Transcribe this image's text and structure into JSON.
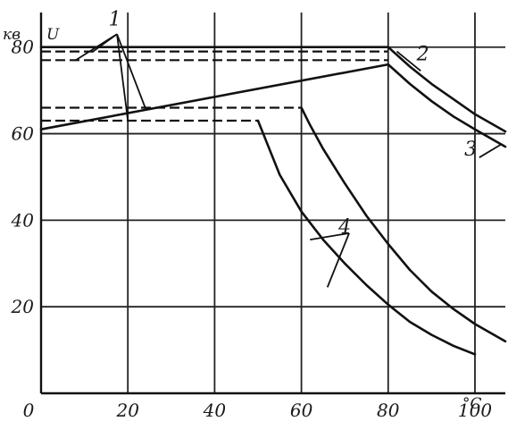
{
  "chart_data": {
    "type": "line",
    "title": "",
    "xlabel": "",
    "ylabel": "",
    "x_unit": "°C",
    "y_unit": "кв",
    "y_symbol": "U",
    "xlim": [
      0,
      107
    ],
    "ylim": [
      0,
      88
    ],
    "x_ticks": [
      0,
      20,
      40,
      60,
      80,
      100
    ],
    "x_tick_labels": [
      "0",
      "20",
      "40",
      "60",
      "80",
      "100"
    ],
    "y_ticks": [
      20,
      40,
      60,
      80
    ],
    "y_tick_labels": [
      "20",
      "40",
      "60",
      "80"
    ],
    "grid": true,
    "series": [
      {
        "name": "1",
        "style": "dashed",
        "x": [
          0,
          80
        ],
        "y": [
          79,
          79
        ]
      },
      {
        "name": "1",
        "style": "dashed",
        "x": [
          0,
          80
        ],
        "y": [
          77,
          77
        ]
      },
      {
        "name": "1",
        "style": "dashed",
        "x": [
          0,
          60
        ],
        "y": [
          66,
          66
        ]
      },
      {
        "name": "1",
        "style": "dashed",
        "x": [
          0,
          50
        ],
        "y": [
          63,
          63
        ]
      },
      {
        "name": "2",
        "style": "solid",
        "x": [
          0,
          80,
          85,
          90,
          95,
          100,
          107
        ],
        "y": [
          80,
          80,
          75.5,
          71.5,
          68,
          64.5,
          60.5
        ]
      },
      {
        "name": "3",
        "style": "solid",
        "x": [
          0,
          80,
          85,
          90,
          95,
          100,
          107
        ],
        "y": [
          61,
          76,
          71.5,
          67.5,
          64,
          61,
          57
        ]
      },
      {
        "name": "4",
        "style": "solid",
        "x": [
          50,
          52,
          55,
          60,
          65,
          70,
          75,
          80,
          85,
          90,
          95,
          100
        ],
        "y": [
          63,
          58,
          50.5,
          42,
          35.5,
          30,
          25,
          20.5,
          16.5,
          13.5,
          11,
          9
        ]
      },
      {
        "name": "4",
        "style": "solid",
        "x": [
          60,
          62,
          65,
          70,
          75,
          80,
          85,
          90,
          95,
          100,
          107
        ],
        "y": [
          66,
          62,
          56.5,
          48.5,
          41,
          34.5,
          28.5,
          23.5,
          19.5,
          16,
          12
        ]
      }
    ],
    "curve_labels": [
      {
        "text": "1",
        "x": 17,
        "y": 85
      },
      {
        "text": "2",
        "x": 88,
        "y": 77
      },
      {
        "text": "3",
        "x": 99,
        "y": 55
      },
      {
        "text": "4",
        "x": 70,
        "y": 37
      }
    ]
  }
}
